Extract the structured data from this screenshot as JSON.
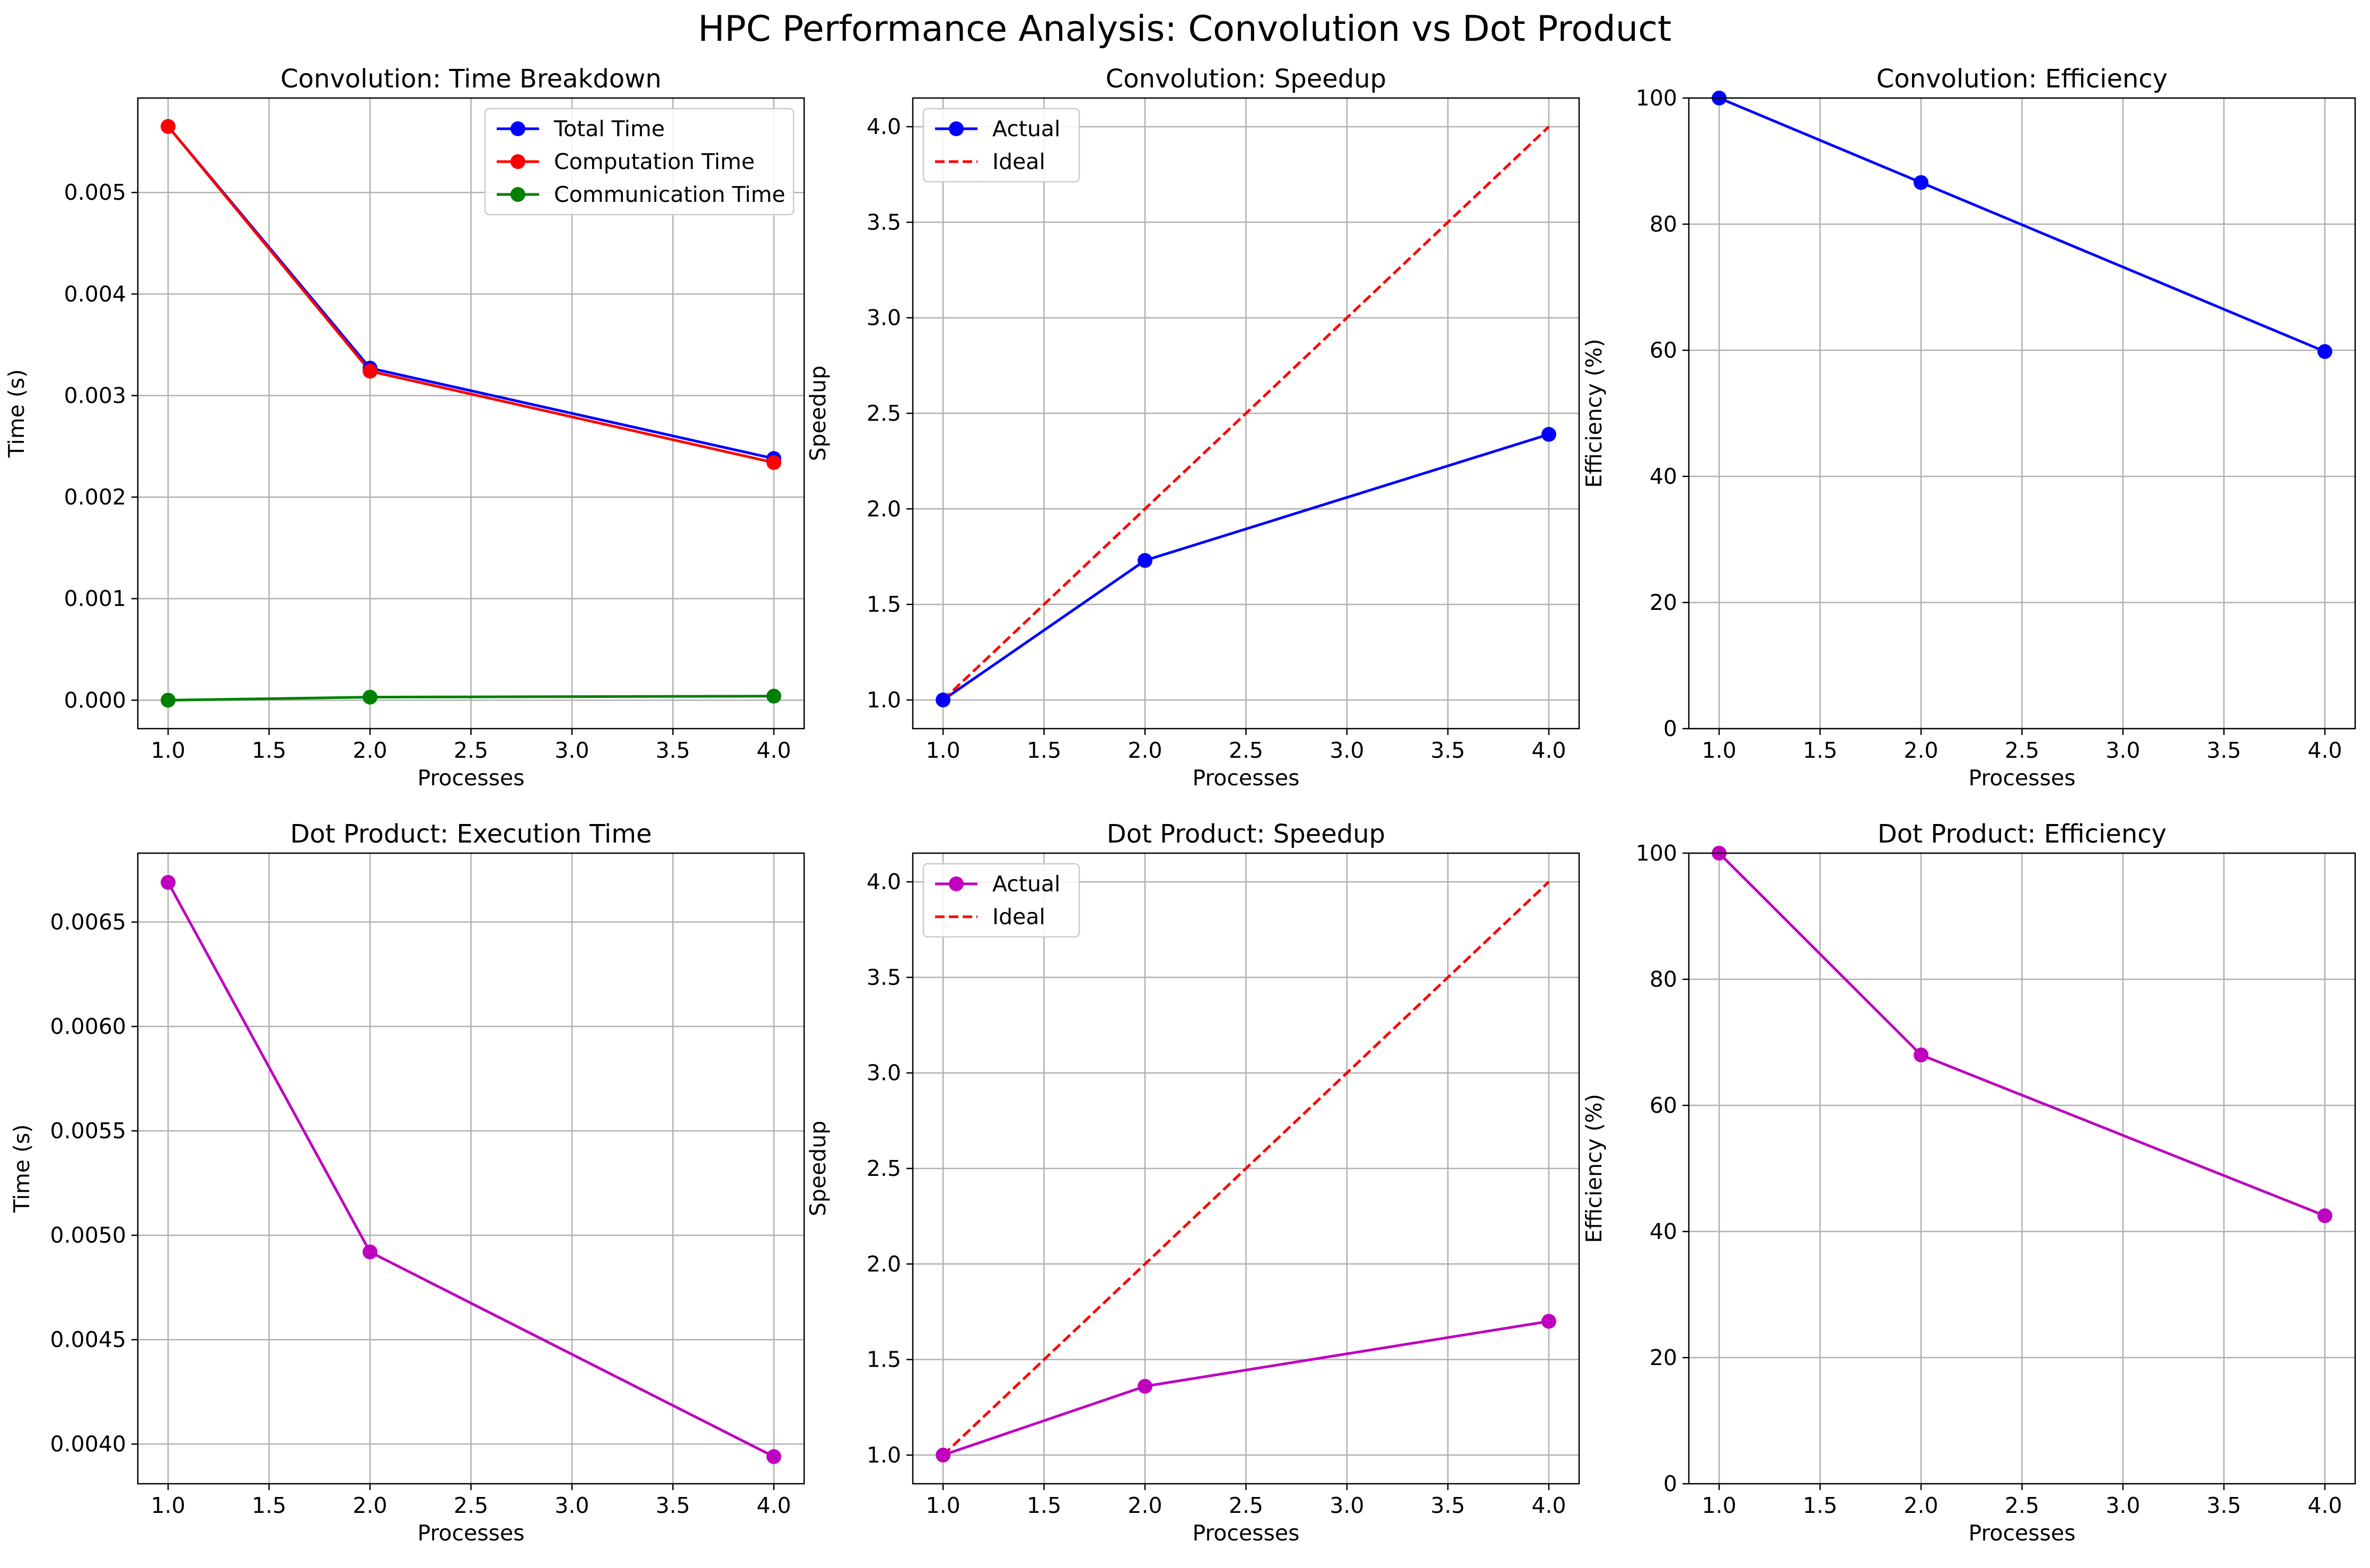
{
  "figure_title": "HPC Performance Analysis: Convolution vs Dot Product",
  "colors": {
    "blue": "#0000ff",
    "red": "#ff0000",
    "green": "#008000",
    "magenta": "#bf00bf",
    "grid": "#b0b0b0"
  },
  "chart_data": [
    {
      "type": "line",
      "title": "Convolution: Time Breakdown",
      "xlabel": "Processes",
      "ylabel": "Time (s)",
      "xlim": [
        0.85,
        4.15
      ],
      "ylim": [
        -0.00028,
        0.00593
      ],
      "xticks": [
        "1.0",
        "1.5",
        "2.0",
        "2.5",
        "3.0",
        "3.5",
        "4.0"
      ],
      "yticks": [
        "0.000",
        "0.001",
        "0.002",
        "0.003",
        "0.004",
        "0.005"
      ],
      "grid": true,
      "legend": "upper right",
      "series": [
        {
          "name": "Total Time",
          "color": "blue",
          "style": "solid",
          "marker": true,
          "x": [
            1,
            2,
            4
          ],
          "y": [
            0.00565,
            0.00327,
            0.00238
          ]
        },
        {
          "name": "Computation Time",
          "color": "red",
          "style": "solid",
          "marker": true,
          "x": [
            1,
            2,
            4
          ],
          "y": [
            0.00565,
            0.00324,
            0.00234
          ]
        },
        {
          "name": "Communication Time",
          "color": "green",
          "style": "solid",
          "marker": true,
          "x": [
            1,
            2,
            4
          ],
          "y": [
            0.0,
            3e-05,
            4e-05
          ]
        }
      ]
    },
    {
      "type": "line",
      "title": "Convolution: Speedup",
      "xlabel": "Processes",
      "ylabel": "Speedup",
      "xlim": [
        0.85,
        4.15
      ],
      "ylim": [
        0.85,
        4.15
      ],
      "xticks": [
        "1.0",
        "1.5",
        "2.0",
        "2.5",
        "3.0",
        "3.5",
        "4.0"
      ],
      "yticks": [
        "1.0",
        "1.5",
        "2.0",
        "2.5",
        "3.0",
        "3.5",
        "4.0"
      ],
      "grid": true,
      "legend": "upper left",
      "series": [
        {
          "name": "Actual",
          "color": "blue",
          "style": "solid",
          "marker": true,
          "x": [
            1,
            2,
            4
          ],
          "y": [
            1.0,
            1.73,
            2.39
          ]
        },
        {
          "name": "Ideal",
          "color": "red",
          "style": "dashed",
          "marker": false,
          "x": [
            1,
            4
          ],
          "y": [
            1.0,
            4.0
          ]
        }
      ]
    },
    {
      "type": "line",
      "title": "Convolution: Efficiency",
      "xlabel": "Processes",
      "ylabel": "Efficiency (%)",
      "xlim": [
        0.85,
        4.15
      ],
      "ylim": [
        0,
        100
      ],
      "xticks": [
        "1.0",
        "1.5",
        "2.0",
        "2.5",
        "3.0",
        "3.5",
        "4.0"
      ],
      "yticks": [
        "0",
        "20",
        "40",
        "60",
        "80",
        "100"
      ],
      "grid": true,
      "legend": "none",
      "series": [
        {
          "color": "blue",
          "style": "solid",
          "marker": true,
          "x": [
            1,
            2,
            4
          ],
          "y": [
            100,
            86.6,
            59.8
          ]
        }
      ]
    },
    {
      "type": "line",
      "title": "Dot Product: Execution Time",
      "xlabel": "Processes",
      "ylabel": "Time (s)",
      "xlim": [
        0.85,
        4.15
      ],
      "ylim": [
        0.00381,
        0.00683
      ],
      "xticks": [
        "1.0",
        "1.5",
        "2.0",
        "2.5",
        "3.0",
        "3.5",
        "4.0"
      ],
      "yticks": [
        "0.0040",
        "0.0045",
        "0.0050",
        "0.0055",
        "0.0060",
        "0.0065"
      ],
      "grid": true,
      "legend": "none",
      "series": [
        {
          "color": "magenta",
          "style": "solid",
          "marker": true,
          "x": [
            1,
            2,
            4
          ],
          "y": [
            0.00669,
            0.00492,
            0.00394
          ]
        }
      ]
    },
    {
      "type": "line",
      "title": "Dot Product: Speedup",
      "xlabel": "Processes",
      "ylabel": "Speedup",
      "xlim": [
        0.85,
        4.15
      ],
      "ylim": [
        0.85,
        4.15
      ],
      "xticks": [
        "1.0",
        "1.5",
        "2.0",
        "2.5",
        "3.0",
        "3.5",
        "4.0"
      ],
      "yticks": [
        "1.0",
        "1.5",
        "2.0",
        "2.5",
        "3.0",
        "3.5",
        "4.0"
      ],
      "grid": true,
      "legend": "upper left",
      "series": [
        {
          "name": "Actual",
          "color": "magenta",
          "style": "solid",
          "marker": true,
          "x": [
            1,
            2,
            4
          ],
          "y": [
            1.0,
            1.36,
            1.7
          ]
        },
        {
          "name": "Ideal",
          "color": "red",
          "style": "dashed",
          "marker": false,
          "x": [
            1,
            4
          ],
          "y": [
            1.0,
            4.0
          ]
        }
      ]
    },
    {
      "type": "line",
      "title": "Dot Product: Efficiency",
      "xlabel": "Processes",
      "ylabel": "Efficiency (%)",
      "xlim": [
        0.85,
        4.15
      ],
      "ylim": [
        0,
        100
      ],
      "xticks": [
        "1.0",
        "1.5",
        "2.0",
        "2.5",
        "3.0",
        "3.5",
        "4.0"
      ],
      "yticks": [
        "0",
        "20",
        "40",
        "60",
        "80",
        "100"
      ],
      "grid": true,
      "legend": "none",
      "series": [
        {
          "color": "magenta",
          "style": "solid",
          "marker": true,
          "x": [
            1,
            2,
            4
          ],
          "y": [
            100,
            68.0,
            42.5
          ]
        }
      ]
    }
  ]
}
